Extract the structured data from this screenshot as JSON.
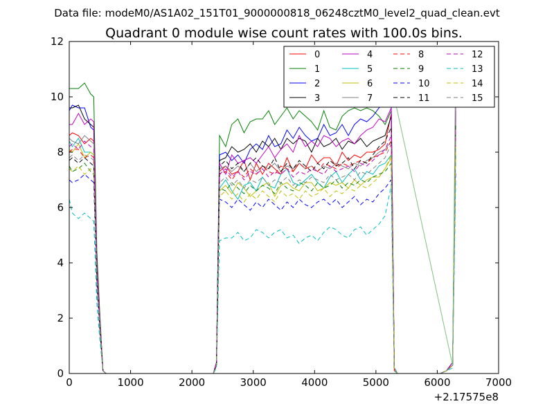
{
  "chart_data": {
    "type": "line",
    "suptitle": "Data file: modeM0/AS1A02_151T01_9000000818_06248cztM0_level2_quad_clean.evt",
    "title": "Quadrant 0 module wise count rates with 100.0s bins.",
    "xlabel": "",
    "ylabel": "",
    "x_offset_label": "+2.17575e8",
    "xlim": [
      0,
      7000
    ],
    "ylim": [
      0,
      12
    ],
    "x_ticks": [
      0,
      1000,
      2000,
      3000,
      4000,
      5000,
      6000,
      7000
    ],
    "y_ticks": [
      0,
      2,
      4,
      6,
      8,
      10,
      12
    ],
    "grid": false,
    "legend_position": "top-right",
    "x": [
      0,
      50,
      150,
      250,
      350,
      400,
      450,
      500,
      550,
      600,
      650,
      750,
      850,
      950,
      1050,
      1150,
      1250,
      1350,
      1450,
      1550,
      1650,
      1750,
      1850,
      1950,
      2050,
      2150,
      2250,
      2350,
      2400,
      2450,
      2550,
      2650,
      2750,
      2850,
      2950,
      3050,
      3150,
      3250,
      3350,
      3450,
      3550,
      3650,
      3750,
      3850,
      3950,
      4050,
      4150,
      4250,
      4350,
      4450,
      4550,
      4650,
      4750,
      4850,
      4950,
      5050,
      5150,
      5250,
      5300,
      5350,
      5450,
      5550,
      5650,
      5750,
      5850,
      5950,
      6050,
      6150,
      6250,
      6300
    ],
    "series": [
      {
        "name": "0",
        "color": "#ff0000",
        "dash": "solid",
        "values": [
          8.6,
          8.7,
          8.6,
          8.3,
          8.5,
          8.4,
          3.7,
          1.9,
          0.1,
          0,
          0,
          0,
          0,
          0,
          0,
          0,
          0,
          0,
          0,
          0,
          0,
          0,
          0,
          0,
          0,
          0,
          0,
          0,
          0.3,
          7.3,
          7.5,
          7.2,
          7.3,
          7.7,
          7.0,
          7.6,
          7.2,
          7.6,
          7.4,
          7.2,
          7.8,
          7.3,
          7.6,
          7.4,
          7.9,
          7.6,
          7.8,
          7.8,
          7.5,
          8.0,
          7.7,
          7.9,
          7.8,
          8.0,
          8.0,
          8.1,
          8.3,
          9.4,
          0.1,
          0,
          0,
          0,
          0,
          0,
          0,
          0,
          0,
          0.1,
          0.3,
          9.5
        ]
      },
      {
        "name": "1",
        "color": "#008000",
        "dash": "solid",
        "values": [
          10.3,
          10.3,
          10.3,
          10.5,
          10.1,
          10.0,
          4.4,
          2.1,
          0.1,
          0,
          0,
          0,
          0,
          0,
          0,
          0,
          0,
          0,
          0,
          0,
          0,
          0,
          0,
          0,
          0,
          0,
          0,
          0,
          0.4,
          8.6,
          8.2,
          9.0,
          9.2,
          8.7,
          9.1,
          9.2,
          9.2,
          9.5,
          9.0,
          9.3,
          9.6,
          9.2,
          9.5,
          9.3,
          9.1,
          8.8,
          9.5,
          8.9,
          8.8,
          9.3,
          9.5,
          9.6,
          9.5,
          9.6,
          9.5,
          9.3,
          9.0,
          9.5,
          0.2,
          0,
          0,
          0,
          0,
          0,
          0,
          0,
          0,
          0.1,
          0.4,
          10.2
        ]
      },
      {
        "name": "2",
        "color": "#0000ff",
        "dash": "solid",
        "values": [
          9.5,
          9.7,
          9.6,
          9.6,
          8.9,
          8.8,
          3.9,
          1.9,
          0.1,
          0,
          0,
          0,
          0,
          0,
          0,
          0,
          0,
          0,
          0,
          0,
          0,
          0,
          0,
          0,
          0,
          0,
          0,
          0,
          0.4,
          7.9,
          8.0,
          7.7,
          7.9,
          7.6,
          8.1,
          8.3,
          8.1,
          8.6,
          8.2,
          8.3,
          8.8,
          8.5,
          8.9,
          8.6,
          8.4,
          8.5,
          9.0,
          8.6,
          8.7,
          9.0,
          8.6,
          9.0,
          9.2,
          9.1,
          9.3,
          9.6,
          9.8,
          9.7,
          0.2,
          0,
          0,
          0,
          0,
          0,
          0,
          0,
          0,
          0.1,
          0.4,
          10.0
        ]
      },
      {
        "name": "3",
        "color": "#000000",
        "dash": "solid",
        "values": [
          9.6,
          9.6,
          9.7,
          9.2,
          9.0,
          8.9,
          4.0,
          1.9,
          0.1,
          0,
          0,
          0,
          0,
          0,
          0,
          0,
          0,
          0,
          0,
          0,
          0,
          0,
          0,
          0,
          0,
          0,
          0,
          0,
          0.4,
          7.7,
          7.8,
          8.2,
          8.0,
          8.1,
          8.3,
          8.0,
          8.4,
          8.2,
          8.5,
          8.1,
          8.5,
          8.3,
          8.5,
          8.4,
          8.0,
          8.5,
          8.2,
          8.3,
          8.5,
          8.1,
          8.4,
          8.3,
          8.5,
          8.2,
          8.4,
          8.5,
          8.6,
          9.3,
          0.2,
          0,
          0,
          0,
          0,
          0,
          0,
          0,
          0,
          0.1,
          0.4,
          9.5
        ]
      },
      {
        "name": "4",
        "color": "#bf00bf",
        "dash": "solid",
        "values": [
          9.0,
          9.0,
          9.4,
          9.0,
          9.2,
          9.1,
          4.0,
          1.9,
          0.1,
          0,
          0,
          0,
          0,
          0,
          0,
          0,
          0,
          0,
          0,
          0,
          0,
          0,
          0,
          0,
          0,
          0,
          0,
          0,
          0.4,
          7.6,
          7.2,
          7.9,
          7.6,
          7.7,
          7.8,
          7.6,
          7.9,
          8.2,
          7.8,
          8.1,
          8.3,
          8.0,
          8.6,
          8.2,
          8.4,
          8.2,
          8.6,
          8.5,
          8.2,
          8.4,
          8.5,
          8.3,
          8.6,
          8.8,
          8.9,
          9.2,
          9.1,
          9.6,
          0.2,
          0,
          0,
          0,
          0,
          0,
          0,
          0,
          0,
          0.1,
          0.4,
          9.8
        ]
      },
      {
        "name": "5",
        "color": "#00bfbf",
        "dash": "solid",
        "values": [
          8.4,
          8.2,
          8.5,
          8.0,
          8.0,
          7.9,
          3.5,
          1.7,
          0.1,
          0,
          0,
          0,
          0,
          0,
          0,
          0,
          0,
          0,
          0,
          0,
          0,
          0,
          0,
          0,
          0,
          0,
          0,
          0,
          0.3,
          6.7,
          7.0,
          6.6,
          6.3,
          6.8,
          6.9,
          6.6,
          7.1,
          6.8,
          6.7,
          7.2,
          7.4,
          6.9,
          6.8,
          7.0,
          7.2,
          6.9,
          6.7,
          7.1,
          7.3,
          6.9,
          7.2,
          7.4,
          7.0,
          7.3,
          7.2,
          7.5,
          7.6,
          7.9,
          0.2,
          0,
          0,
          0,
          0,
          0,
          0,
          0,
          0,
          0.1,
          0.3,
          8.3
        ]
      },
      {
        "name": "6",
        "color": "#bfbf00",
        "dash": "solid",
        "values": [
          8.1,
          8.0,
          8.3,
          7.8,
          8.0,
          7.9,
          3.5,
          1.7,
          0.1,
          0,
          0,
          0,
          0,
          0,
          0,
          0,
          0,
          0,
          0,
          0,
          0,
          0,
          0,
          0,
          0,
          0,
          0,
          0,
          0.3,
          6.6,
          6.8,
          6.5,
          6.9,
          6.7,
          6.4,
          6.6,
          6.8,
          6.9,
          6.4,
          6.8,
          6.9,
          6.7,
          6.6,
          6.9,
          6.9,
          6.6,
          6.7,
          6.9,
          6.8,
          6.9,
          6.7,
          7.0,
          6.8,
          7.0,
          7.1,
          7.1,
          7.4,
          7.8,
          0.2,
          0,
          0,
          0,
          0,
          0,
          0,
          0,
          0,
          0.1,
          0.3,
          8.1
        ]
      },
      {
        "name": "7",
        "color": "#808080",
        "dash": "solid",
        "values": [
          8.5,
          8.4,
          8.3,
          8.6,
          8.4,
          8.3,
          3.7,
          1.8,
          0.1,
          0,
          0,
          0,
          0,
          0,
          0,
          0,
          0,
          0,
          0,
          0,
          0,
          0,
          0,
          0,
          0,
          0,
          0,
          0,
          0.3,
          7.4,
          7.5,
          7.3,
          7.5,
          7.3,
          7.6,
          7.3,
          7.5,
          7.4,
          7.6,
          7.3,
          7.5,
          7.4,
          7.6,
          7.4,
          7.5,
          7.3,
          7.5,
          7.4,
          7.6,
          7.5,
          7.4,
          7.6,
          7.5,
          7.7,
          7.8,
          8.0,
          8.1,
          8.4,
          0.2,
          0,
          0,
          0,
          0,
          0,
          0,
          0,
          0,
          0.1,
          0.3,
          8.6
        ]
      },
      {
        "name": "8",
        "color": "#ff0000",
        "dash": "dashed",
        "values": [
          8.0,
          8.1,
          8.1,
          7.8,
          7.9,
          7.8,
          3.4,
          1.6,
          0.1,
          0,
          0,
          0,
          0,
          0,
          0,
          0,
          0,
          0,
          0,
          0,
          0,
          0,
          0,
          0,
          0,
          0,
          0,
          0,
          0.3,
          7.2,
          7.3,
          7.0,
          7.3,
          7.1,
          7.4,
          7.2,
          7.5,
          7.3,
          7.2,
          7.5,
          7.4,
          7.3,
          7.6,
          7.4,
          7.5,
          7.3,
          7.6,
          7.5,
          7.4,
          7.6,
          7.5,
          7.6,
          7.7,
          7.6,
          7.8,
          7.9,
          8.0,
          8.4,
          0.2,
          0,
          0,
          0,
          0,
          0,
          0,
          0,
          0,
          0.1,
          0.3,
          8.7
        ]
      },
      {
        "name": "9",
        "color": "#008000",
        "dash": "dashed",
        "values": [
          7.5,
          7.3,
          7.4,
          7.6,
          7.3,
          7.2,
          3.3,
          1.6,
          0.1,
          0,
          0,
          0,
          0,
          0,
          0,
          0,
          0,
          0,
          0,
          0,
          0,
          0,
          0,
          0,
          0,
          0,
          0,
          0,
          0.3,
          6.7,
          6.6,
          6.9,
          6.7,
          6.5,
          6.8,
          6.6,
          6.8,
          6.7,
          6.5,
          6.9,
          6.7,
          6.6,
          6.9,
          6.8,
          6.6,
          6.9,
          6.7,
          6.8,
          7.0,
          6.7,
          6.9,
          6.8,
          7.0,
          6.9,
          7.1,
          7.2,
          7.3,
          7.6,
          0.2,
          0,
          0,
          0,
          0,
          0,
          0,
          0,
          0,
          0.1,
          0.3,
          7.9
        ]
      },
      {
        "name": "10",
        "color": "#0000ff",
        "dash": "dashed",
        "values": [
          7.0,
          6.9,
          7.0,
          7.2,
          7.0,
          6.9,
          3.1,
          1.5,
          0.1,
          0,
          0,
          0,
          0,
          0,
          0,
          0,
          0,
          0,
          0,
          0,
          0,
          0,
          0,
          0,
          0,
          0,
          0,
          0,
          0.3,
          6.3,
          6.2,
          6.0,
          6.3,
          6.1,
          5.9,
          6.2,
          6.0,
          6.3,
          6.1,
          5.9,
          6.2,
          6.0,
          6.3,
          6.1,
          6.0,
          6.2,
          6.3,
          6.1,
          6.3,
          6.0,
          6.2,
          6.4,
          6.1,
          6.3,
          6.2,
          6.5,
          6.7,
          7.0,
          0.2,
          0,
          0,
          0,
          0,
          0,
          0,
          0,
          0,
          0.1,
          0.3,
          7.3
        ]
      },
      {
        "name": "11",
        "color": "#000000",
        "dash": "dashed",
        "values": [
          7.7,
          7.8,
          7.6,
          7.8,
          7.6,
          7.5,
          3.4,
          1.6,
          0.1,
          0,
          0,
          0,
          0,
          0,
          0,
          0,
          0,
          0,
          0,
          0,
          0,
          0,
          0,
          0,
          0,
          0,
          0,
          0,
          0.3,
          7.5,
          7.7,
          7.4,
          7.6,
          7.3,
          7.6,
          7.8,
          7.5,
          7.4,
          7.8,
          7.3,
          7.6,
          7.4,
          7.7,
          7.5,
          7.3,
          7.6,
          7.4,
          7.7,
          7.5,
          7.6,
          7.8,
          7.4,
          7.7,
          7.6,
          7.9,
          8.2,
          8.4,
          8.9,
          0.2,
          0,
          0,
          0,
          0,
          0,
          0,
          0,
          0,
          0.1,
          0.3,
          9.0
        ]
      },
      {
        "name": "12",
        "color": "#bf00bf",
        "dash": "dashed",
        "values": [
          8.2,
          8.3,
          8.1,
          8.4,
          8.2,
          8.1,
          3.6,
          1.7,
          0.1,
          0,
          0,
          0,
          0,
          0,
          0,
          0,
          0,
          0,
          0,
          0,
          0,
          0,
          0,
          0,
          0,
          0,
          0,
          0,
          0.3,
          7.2,
          7.4,
          7.1,
          7.3,
          7.0,
          7.3,
          7.2,
          7.4,
          7.1,
          7.3,
          7.2,
          7.4,
          7.1,
          7.3,
          7.2,
          7.4,
          7.3,
          7.2,
          7.5,
          7.3,
          7.4,
          7.5,
          7.3,
          7.6,
          7.5,
          7.7,
          7.9,
          8.1,
          8.6,
          0.2,
          0,
          0,
          0,
          0,
          0,
          0,
          0,
          0,
          0.1,
          0.3,
          8.8
        ]
      },
      {
        "name": "13",
        "color": "#00bfbf",
        "dash": "dashed",
        "values": [
          6.3,
          5.8,
          5.6,
          5.8,
          5.6,
          5.5,
          2.5,
          1.2,
          0.1,
          0,
          0,
          0,
          0,
          0,
          0,
          0,
          0,
          0,
          0,
          0,
          0,
          0,
          0,
          0,
          0,
          0,
          0,
          0,
          0.2,
          4.8,
          4.9,
          4.9,
          5.1,
          4.8,
          4.9,
          5.2,
          5.1,
          4.9,
          5.1,
          5.2,
          4.9,
          5.0,
          4.7,
          4.9,
          5.0,
          4.8,
          5.1,
          5.3,
          5.2,
          5.0,
          4.9,
          5.2,
          5.3,
          5.0,
          5.2,
          5.4,
          5.7,
          6.8,
          0.1,
          0,
          0,
          0,
          0,
          0,
          0,
          0,
          0,
          0.1,
          0.2,
          7.0
        ]
      },
      {
        "name": "14",
        "color": "#bfbf00",
        "dash": "dashed",
        "values": [
          7.4,
          7.3,
          7.5,
          7.2,
          7.4,
          7.3,
          3.3,
          1.6,
          0.1,
          0,
          0,
          0,
          0,
          0,
          0,
          0,
          0,
          0,
          0,
          0,
          0,
          0,
          0,
          0,
          0,
          0,
          0,
          0,
          0.3,
          6.4,
          6.6,
          6.3,
          6.5,
          6.2,
          6.5,
          6.3,
          6.6,
          6.4,
          6.2,
          6.6,
          6.4,
          6.5,
          6.3,
          6.6,
          6.4,
          6.5,
          6.7,
          6.4,
          6.6,
          6.5,
          6.7,
          6.6,
          6.8,
          6.7,
          6.9,
          7.1,
          7.4,
          7.9,
          0.2,
          0,
          0,
          0,
          0,
          0,
          0,
          0,
          0,
          0.1,
          0.3,
          8.2
        ]
      },
      {
        "name": "15",
        "color": "#808080",
        "dash": "dashed",
        "values": [
          7.8,
          7.9,
          7.7,
          7.9,
          7.8,
          7.7,
          3.4,
          1.6,
          0.1,
          0,
          0,
          0,
          0,
          0,
          0,
          0,
          0,
          0,
          0,
          0,
          0,
          0,
          0,
          0,
          0,
          0,
          0,
          0,
          0.3,
          6.9,
          7.1,
          6.8,
          7.0,
          6.7,
          7.0,
          6.9,
          7.1,
          6.8,
          7.0,
          6.9,
          7.1,
          6.8,
          7.0,
          6.9,
          7.1,
          7.0,
          6.9,
          7.2,
          7.0,
          7.1,
          7.2,
          7.0,
          7.3,
          7.2,
          7.4,
          7.6,
          7.8,
          8.3,
          0.2,
          0,
          0,
          0,
          0,
          0,
          0,
          0,
          0,
          0.1,
          0.3,
          8.5
        ]
      }
    ],
    "annotations": [
      {
        "series": "1",
        "x": 6300,
        "y": 11.5,
        "color": "#7fbf7f"
      },
      {
        "series": "5",
        "x": 5200,
        "y": 11.0,
        "color": "#7fbf7f"
      }
    ]
  }
}
